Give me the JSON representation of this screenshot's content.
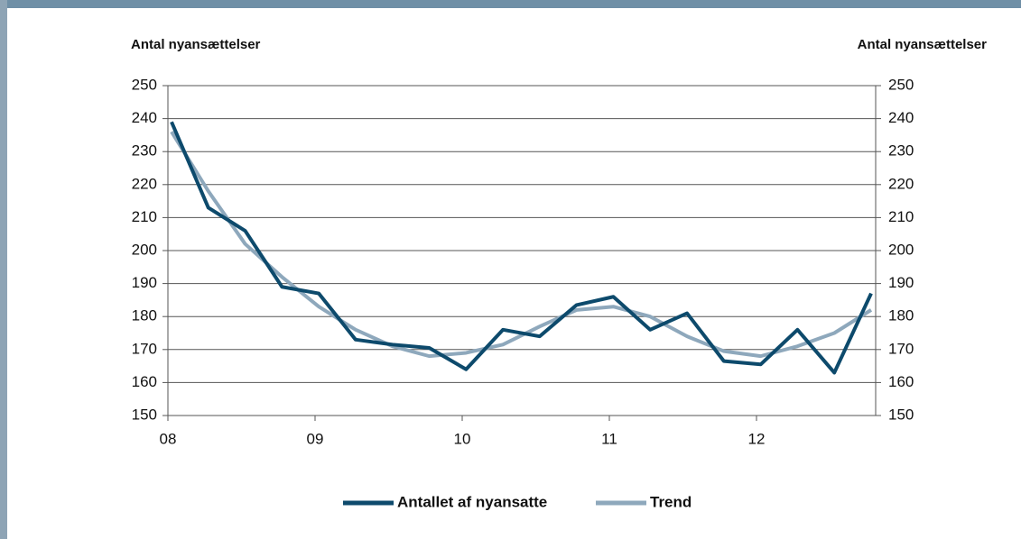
{
  "chart_data": {
    "type": "line",
    "y_label": "Antal nyansættelser",
    "y2_label": "Antal nyansættelser",
    "categories": [
      "08",
      null,
      null,
      null,
      "09",
      null,
      null,
      null,
      "10",
      null,
      null,
      null,
      "11",
      null,
      null,
      null,
      "12",
      null,
      null,
      null
    ],
    "series": [
      {
        "name": "Antallet af nyansatte",
        "color": "#0d4a6c",
        "values": [
          239,
          213,
          206,
          189,
          187,
          173,
          171.5,
          170.5,
          164,
          176,
          174,
          183.5,
          186,
          176,
          181,
          166.5,
          165.5,
          176,
          163,
          187
        ]
      },
      {
        "name": "Trend",
        "color": "#8ea8bc",
        "values": [
          236,
          218,
          202,
          192,
          183,
          176,
          171,
          168,
          169,
          171.5,
          177,
          182,
          183,
          180,
          174,
          169.5,
          168,
          171,
          175,
          182
        ]
      }
    ],
    "ylim": [
      150,
      250
    ],
    "yticks": [
      150,
      160,
      170,
      180,
      190,
      200,
      210,
      220,
      230,
      240,
      250
    ],
    "y2lim": [
      150,
      250
    ],
    "y2ticks": [
      150,
      160,
      170,
      180,
      190,
      200,
      210,
      220,
      230,
      240,
      250
    ],
    "grid": true,
    "legend": "bottom"
  }
}
